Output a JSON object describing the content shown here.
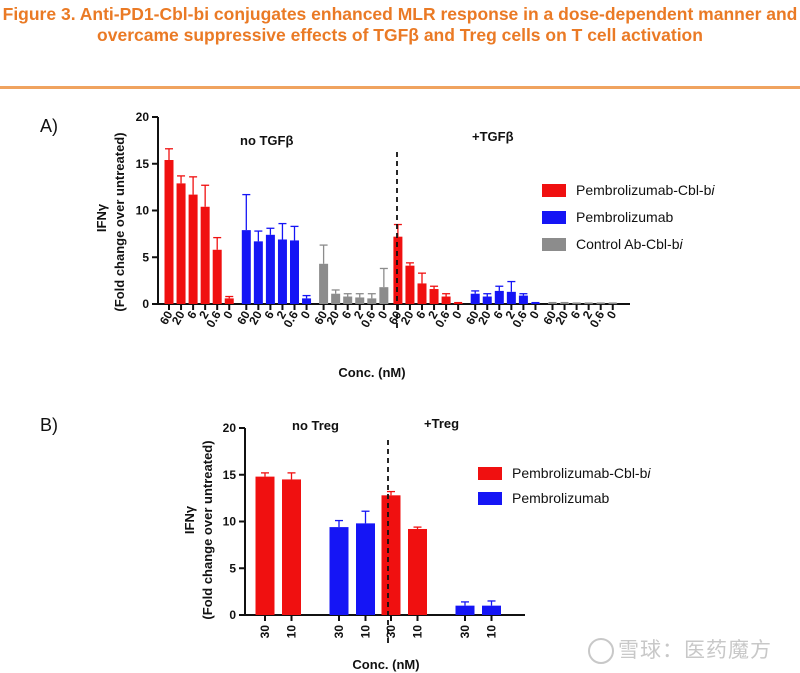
{
  "figure_title": "Figure 3. Anti-PD1-Cbl-bi conjugates enhanced MLR response in a dose-dependent manner and overcame suppressive effects of TGFβ and Treg cells on T cell activation",
  "panel_a_label": "A)",
  "panel_b_label": "B)",
  "watermark": "雪球：医药魔方",
  "colors": {
    "title": "#ea7a25",
    "red": "#f01010",
    "blue": "#1515f5",
    "gray": "#8c8c8c"
  },
  "chart_data": [
    {
      "type": "bar",
      "title": "",
      "ylabel": "IFNγ",
      "ylabel2": "(Fold change over untreated)",
      "xlabel": "Conc. (nM)",
      "ylim": [
        0,
        20
      ],
      "yticks": [
        "0",
        "5",
        "10",
        "15",
        "20"
      ],
      "group_labels": [
        "no TGFβ",
        "+TGFβ"
      ],
      "legend": [
        {
          "name": "Pembrolizumab-Cbl-b",
          "suffix": "i",
          "color": "red"
        },
        {
          "name": "Pembrolizumab",
          "suffix": "",
          "color": "blue"
        },
        {
          "name": "Control Ab-Cbl-b",
          "suffix": "i",
          "color": "gray"
        }
      ],
      "categories": [
        "60",
        "20",
        "6",
        "2",
        "0.6",
        "0"
      ],
      "bars": [
        {
          "condition": "no TGFβ",
          "series": "red",
          "conc": "60",
          "value": 15.4,
          "err": 1.2
        },
        {
          "condition": "no TGFβ",
          "series": "red",
          "conc": "20",
          "value": 12.9,
          "err": 0.8
        },
        {
          "condition": "no TGFβ",
          "series": "red",
          "conc": "6",
          "value": 11.7,
          "err": 1.9
        },
        {
          "condition": "no TGFβ",
          "series": "red",
          "conc": "2",
          "value": 10.4,
          "err": 2.3
        },
        {
          "condition": "no TGFβ",
          "series": "red",
          "conc": "0.6",
          "value": 5.8,
          "err": 1.3
        },
        {
          "condition": "no TGFβ",
          "series": "red",
          "conc": "0",
          "value": 0.6,
          "err": 0.2
        },
        {
          "condition": "no TGFβ",
          "series": "blue",
          "conc": "60",
          "value": 7.9,
          "err": 3.8
        },
        {
          "condition": "no TGFβ",
          "series": "blue",
          "conc": "20",
          "value": 6.7,
          "err": 1.1
        },
        {
          "condition": "no TGFβ",
          "series": "blue",
          "conc": "6",
          "value": 7.4,
          "err": 0.7
        },
        {
          "condition": "no TGFβ",
          "series": "blue",
          "conc": "2",
          "value": 6.9,
          "err": 1.7
        },
        {
          "condition": "no TGFβ",
          "series": "blue",
          "conc": "0.6",
          "value": 6.8,
          "err": 1.5
        },
        {
          "condition": "no TGFβ",
          "series": "blue",
          "conc": "0",
          "value": 0.6,
          "err": 0.3
        },
        {
          "condition": "no TGFβ",
          "series": "gray",
          "conc": "60",
          "value": 4.3,
          "err": 2.0
        },
        {
          "condition": "no TGFβ",
          "series": "gray",
          "conc": "20",
          "value": 1.1,
          "err": 0.4
        },
        {
          "condition": "no TGFβ",
          "series": "gray",
          "conc": "6",
          "value": 0.8,
          "err": 0.3
        },
        {
          "condition": "no TGFβ",
          "series": "gray",
          "conc": "2",
          "value": 0.7,
          "err": 0.4
        },
        {
          "condition": "no TGFβ",
          "series": "gray",
          "conc": "0.6",
          "value": 0.6,
          "err": 0.5
        },
        {
          "condition": "no TGFβ",
          "series": "gray",
          "conc": "0",
          "value": 1.8,
          "err": 2.0
        },
        {
          "condition": "+TGFβ",
          "series": "red",
          "conc": "60",
          "value": 7.2,
          "err": 1.3
        },
        {
          "condition": "+TGFβ",
          "series": "red",
          "conc": "20",
          "value": 4.1,
          "err": 0.3
        },
        {
          "condition": "+TGFβ",
          "series": "red",
          "conc": "6",
          "value": 2.2,
          "err": 1.1
        },
        {
          "condition": "+TGFβ",
          "series": "red",
          "conc": "2",
          "value": 1.6,
          "err": 0.3
        },
        {
          "condition": "+TGFβ",
          "series": "red",
          "conc": "0.6",
          "value": 0.8,
          "err": 0.3
        },
        {
          "condition": "+TGFβ",
          "series": "red",
          "conc": "0",
          "value": 0.1,
          "err": 0.05
        },
        {
          "condition": "+TGFβ",
          "series": "blue",
          "conc": "60",
          "value": 1.1,
          "err": 0.3
        },
        {
          "condition": "+TGFβ",
          "series": "blue",
          "conc": "20",
          "value": 0.8,
          "err": 0.3
        },
        {
          "condition": "+TGFβ",
          "series": "blue",
          "conc": "6",
          "value": 1.4,
          "err": 0.5
        },
        {
          "condition": "+TGFβ",
          "series": "blue",
          "conc": "2",
          "value": 1.3,
          "err": 1.1
        },
        {
          "condition": "+TGFβ",
          "series": "blue",
          "conc": "0.6",
          "value": 0.9,
          "err": 0.2
        },
        {
          "condition": "+TGFβ",
          "series": "blue",
          "conc": "0",
          "value": 0.1,
          "err": 0.05
        },
        {
          "condition": "+TGFβ",
          "series": "gray",
          "conc": "60",
          "value": 0.1,
          "err": 0.05
        },
        {
          "condition": "+TGFβ",
          "series": "gray",
          "conc": "20",
          "value": 0.1,
          "err": 0.05
        },
        {
          "condition": "+TGFβ",
          "series": "gray",
          "conc": "6",
          "value": 0.05,
          "err": 0.05
        },
        {
          "condition": "+TGFβ",
          "series": "gray",
          "conc": "2",
          "value": 0.05,
          "err": 0.05
        },
        {
          "condition": "+TGFβ",
          "series": "gray",
          "conc": "0.6",
          "value": 0.05,
          "err": 0.05
        },
        {
          "condition": "+TGFβ",
          "series": "gray",
          "conc": "0",
          "value": 0.05,
          "err": 0.05
        }
      ]
    },
    {
      "type": "bar",
      "title": "",
      "ylabel": "IFNγ",
      "ylabel2": "(Fold change over untreated)",
      "xlabel": "Conc. (nM)",
      "ylim": [
        0,
        20
      ],
      "yticks": [
        "0",
        "5",
        "10",
        "15",
        "20"
      ],
      "group_labels": [
        "no Treg",
        "+Treg"
      ],
      "legend": [
        {
          "name": "Pembrolizumab-Cbl-b",
          "suffix": "i",
          "color": "red"
        },
        {
          "name": "Pembrolizumab",
          "suffix": "",
          "color": "blue"
        }
      ],
      "categories": [
        "30",
        "10"
      ],
      "bars": [
        {
          "condition": "no Treg",
          "series": "red",
          "conc": "30",
          "value": 14.8,
          "err": 0.4
        },
        {
          "condition": "no Treg",
          "series": "red",
          "conc": "10",
          "value": 14.5,
          "err": 0.7
        },
        {
          "condition": "no Treg",
          "series": "blue",
          "conc": "30",
          "value": 9.4,
          "err": 0.7
        },
        {
          "condition": "no Treg",
          "series": "blue",
          "conc": "10",
          "value": 9.8,
          "err": 1.3
        },
        {
          "condition": "+Treg",
          "series": "red",
          "conc": "30",
          "value": 12.8,
          "err": 0.4
        },
        {
          "condition": "+Treg",
          "series": "red",
          "conc": "10",
          "value": 9.2,
          "err": 0.2
        },
        {
          "condition": "+Treg",
          "series": "blue",
          "conc": "30",
          "value": 1.0,
          "err": 0.4
        },
        {
          "condition": "+Treg",
          "series": "blue",
          "conc": "10",
          "value": 1.0,
          "err": 0.5
        }
      ]
    }
  ]
}
